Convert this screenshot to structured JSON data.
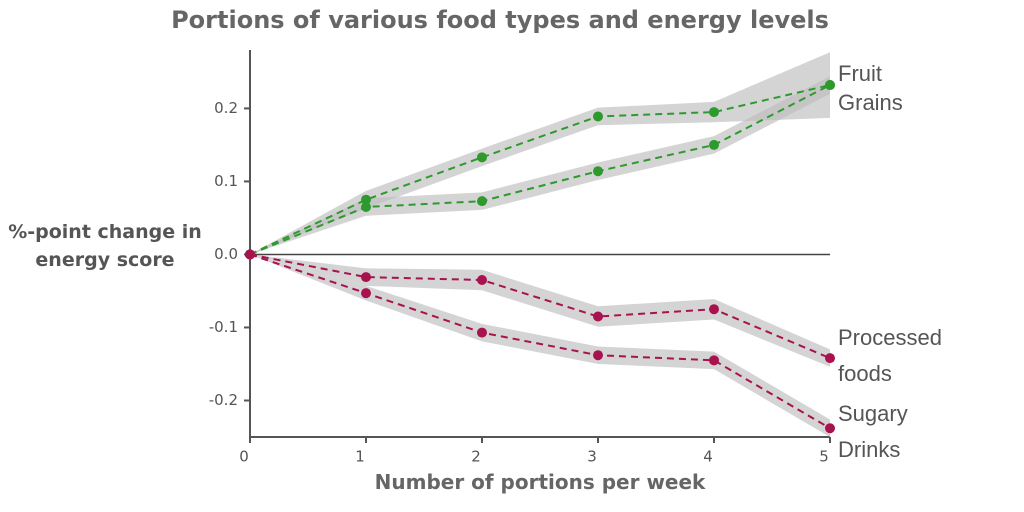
{
  "chart_data": {
    "type": "line",
    "title": "Portions of various food types and energy levels",
    "x_label": "Number of portions per week",
    "y_label": "%-point change in energy score",
    "x": [
      0,
      1,
      2,
      3,
      4,
      5
    ],
    "xlim": [
      0,
      5
    ],
    "xticks": [
      0,
      1,
      2,
      3,
      4,
      5
    ],
    "ylim": [
      -0.25,
      0.28
    ],
    "yticks": [
      -0.2,
      -0.1,
      {
        "value": 0,
        "label": "0.0"
      },
      0.1,
      0.2
    ],
    "band_color": "#bdbdbd",
    "series": [
      {
        "name": "Fruit",
        "color": "#2e9a2e",
        "values": [
          0,
          0.075,
          0.133,
          0.189,
          0.195,
          0.232
        ],
        "ci": [
          0,
          0.012,
          0.012,
          0.012,
          0.014,
          0.045
        ]
      },
      {
        "name": "Grains",
        "color": "#2e9a2e",
        "values": [
          0,
          0.065,
          0.073,
          0.114,
          0.15,
          0.232
        ],
        "ci": [
          0,
          0.012,
          0.012,
          0.012,
          0.012,
          0.012
        ]
      },
      {
        "name": "Processed foods",
        "color": "#a8124f",
        "values": [
          0,
          -0.031,
          -0.035,
          -0.085,
          -0.075,
          -0.142
        ],
        "ci": [
          0,
          0.012,
          0.014,
          0.014,
          0.014,
          0.012
        ]
      },
      {
        "name": "Sugary Drinks",
        "color": "#a8124f",
        "values": [
          0,
          -0.053,
          -0.107,
          -0.138,
          -0.145,
          -0.238
        ],
        "ci": [
          0,
          0.01,
          0.012,
          0.012,
          0.012,
          0.012
        ]
      }
    ]
  }
}
